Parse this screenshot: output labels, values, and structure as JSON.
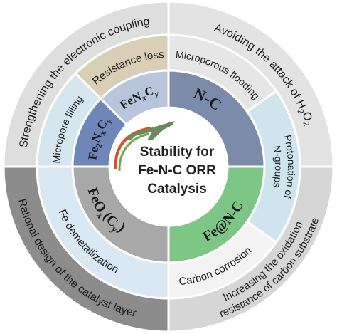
{
  "center": {
    "title_lines": [
      "Stability for",
      "Fe-N-C ORR",
      "Catalysis"
    ]
  },
  "outer_ring": [
    {
      "lines": [
        [
          "Strengthening the electronic coupling"
        ]
      ]
    },
    {
      "lines": [
        [
          "Avoiding the attack of H",
          {
            "sub": "2"
          },
          "O",
          {
            "sub": "2"
          }
        ]
      ]
    },
    {
      "lines": [
        [
          "Rational design of the catalyst layer"
        ]
      ]
    },
    {
      "lines": [
        [
          "Increasing the oxidation"
        ],
        [
          "resistance of carbon substrate"
        ]
      ]
    }
  ],
  "middle_ring": [
    {
      "lines": [
        [
          "Resistance loss"
        ]
      ]
    },
    {
      "lines": [
        [
          "Micropore filling"
        ]
      ]
    },
    {
      "lines": [
        [
          "Microporous flooding"
        ]
      ]
    },
    {
      "lines": [
        [
          "Protonation of"
        ],
        [
          "N-groups"
        ]
      ]
    },
    {
      "lines": [
        [
          "Fe demetallization"
        ]
      ]
    },
    {
      "lines": [
        [
          "Carbon corrosion"
        ]
      ]
    }
  ],
  "inner_ring": [
    {
      "lines": [
        [
          "FeN",
          {
            "sub": "x"
          },
          "C",
          {
            "sub": "y"
          }
        ]
      ]
    },
    {
      "lines": [
        [
          "Fe",
          {
            "sub": "2"
          },
          "N",
          {
            "sub": "x"
          },
          "C",
          {
            "sub": "y"
          }
        ]
      ]
    },
    {
      "lines": [
        [
          "N-C"
        ]
      ]
    },
    {
      "lines": [
        [
          "FeO",
          {
            "sub": "x"
          },
          "(C",
          {
            "sub": "y"
          },
          ")"
        ]
      ]
    },
    {
      "lines": [
        [
          "Fe@N-C"
        ]
      ]
    }
  ]
}
